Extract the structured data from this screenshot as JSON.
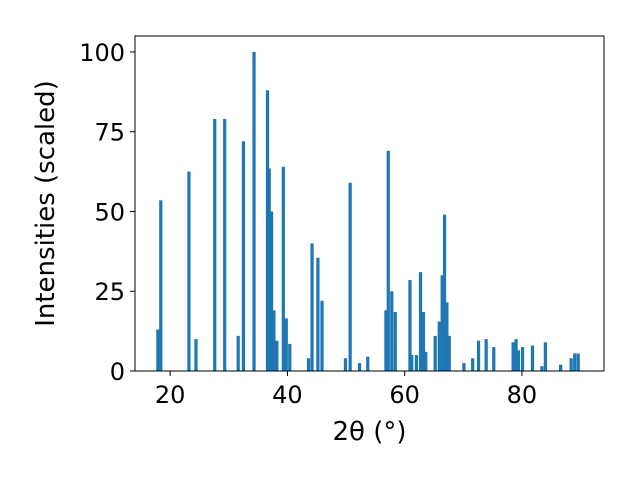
{
  "chart_data": {
    "type": "bar",
    "xlabel": "2θ (°)",
    "ylabel": "Intensities (scaled)",
    "xlim": [
      14,
      94
    ],
    "ylim": [
      0,
      105
    ],
    "xticks": [
      20,
      40,
      60,
      80
    ],
    "yticks": [
      0,
      25,
      50,
      75,
      100
    ],
    "grid": false,
    "bar_color": "#1f77b4",
    "x": [
      17.9,
      18.4,
      23.2,
      24.4,
      27.6,
      29.3,
      31.6,
      32.5,
      34.3,
      36.6,
      36.9,
      37.3,
      37.7,
      38.2,
      39.3,
      39.8,
      40.4,
      43.6,
      44.2,
      45.2,
      45.9,
      49.9,
      50.7,
      52.3,
      53.7,
      56.8,
      57.2,
      57.8,
      58.4,
      60.9,
      61.2,
      62.0,
      62.7,
      63.2,
      63.6,
      65.2,
      65.9,
      66.4,
      66.8,
      67.2,
      67.6,
      70.1,
      71.6,
      72.6,
      73.9,
      75.2,
      78.5,
      79.0,
      79.4,
      80.1,
      81.8,
      83.4,
      84.0,
      86.6,
      88.4,
      89.0,
      89.6
    ],
    "values": [
      13,
      53.5,
      62.5,
      10,
      79,
      79,
      11,
      72,
      100,
      88,
      63.5,
      50,
      19,
      9.5,
      64,
      16.5,
      8.5,
      4,
      40,
      35.5,
      22,
      4,
      59,
      2.5,
      4.5,
      19,
      69,
      25,
      18.5,
      28.5,
      5,
      5,
      31,
      18.5,
      6,
      11,
      15.5,
      30,
      49,
      21.5,
      11,
      2.5,
      4,
      9.5,
      10,
      7.5,
      9,
      10,
      6.5,
      7.5,
      8,
      1.5,
      9,
      2,
      4,
      5.5,
      5.5
    ]
  }
}
